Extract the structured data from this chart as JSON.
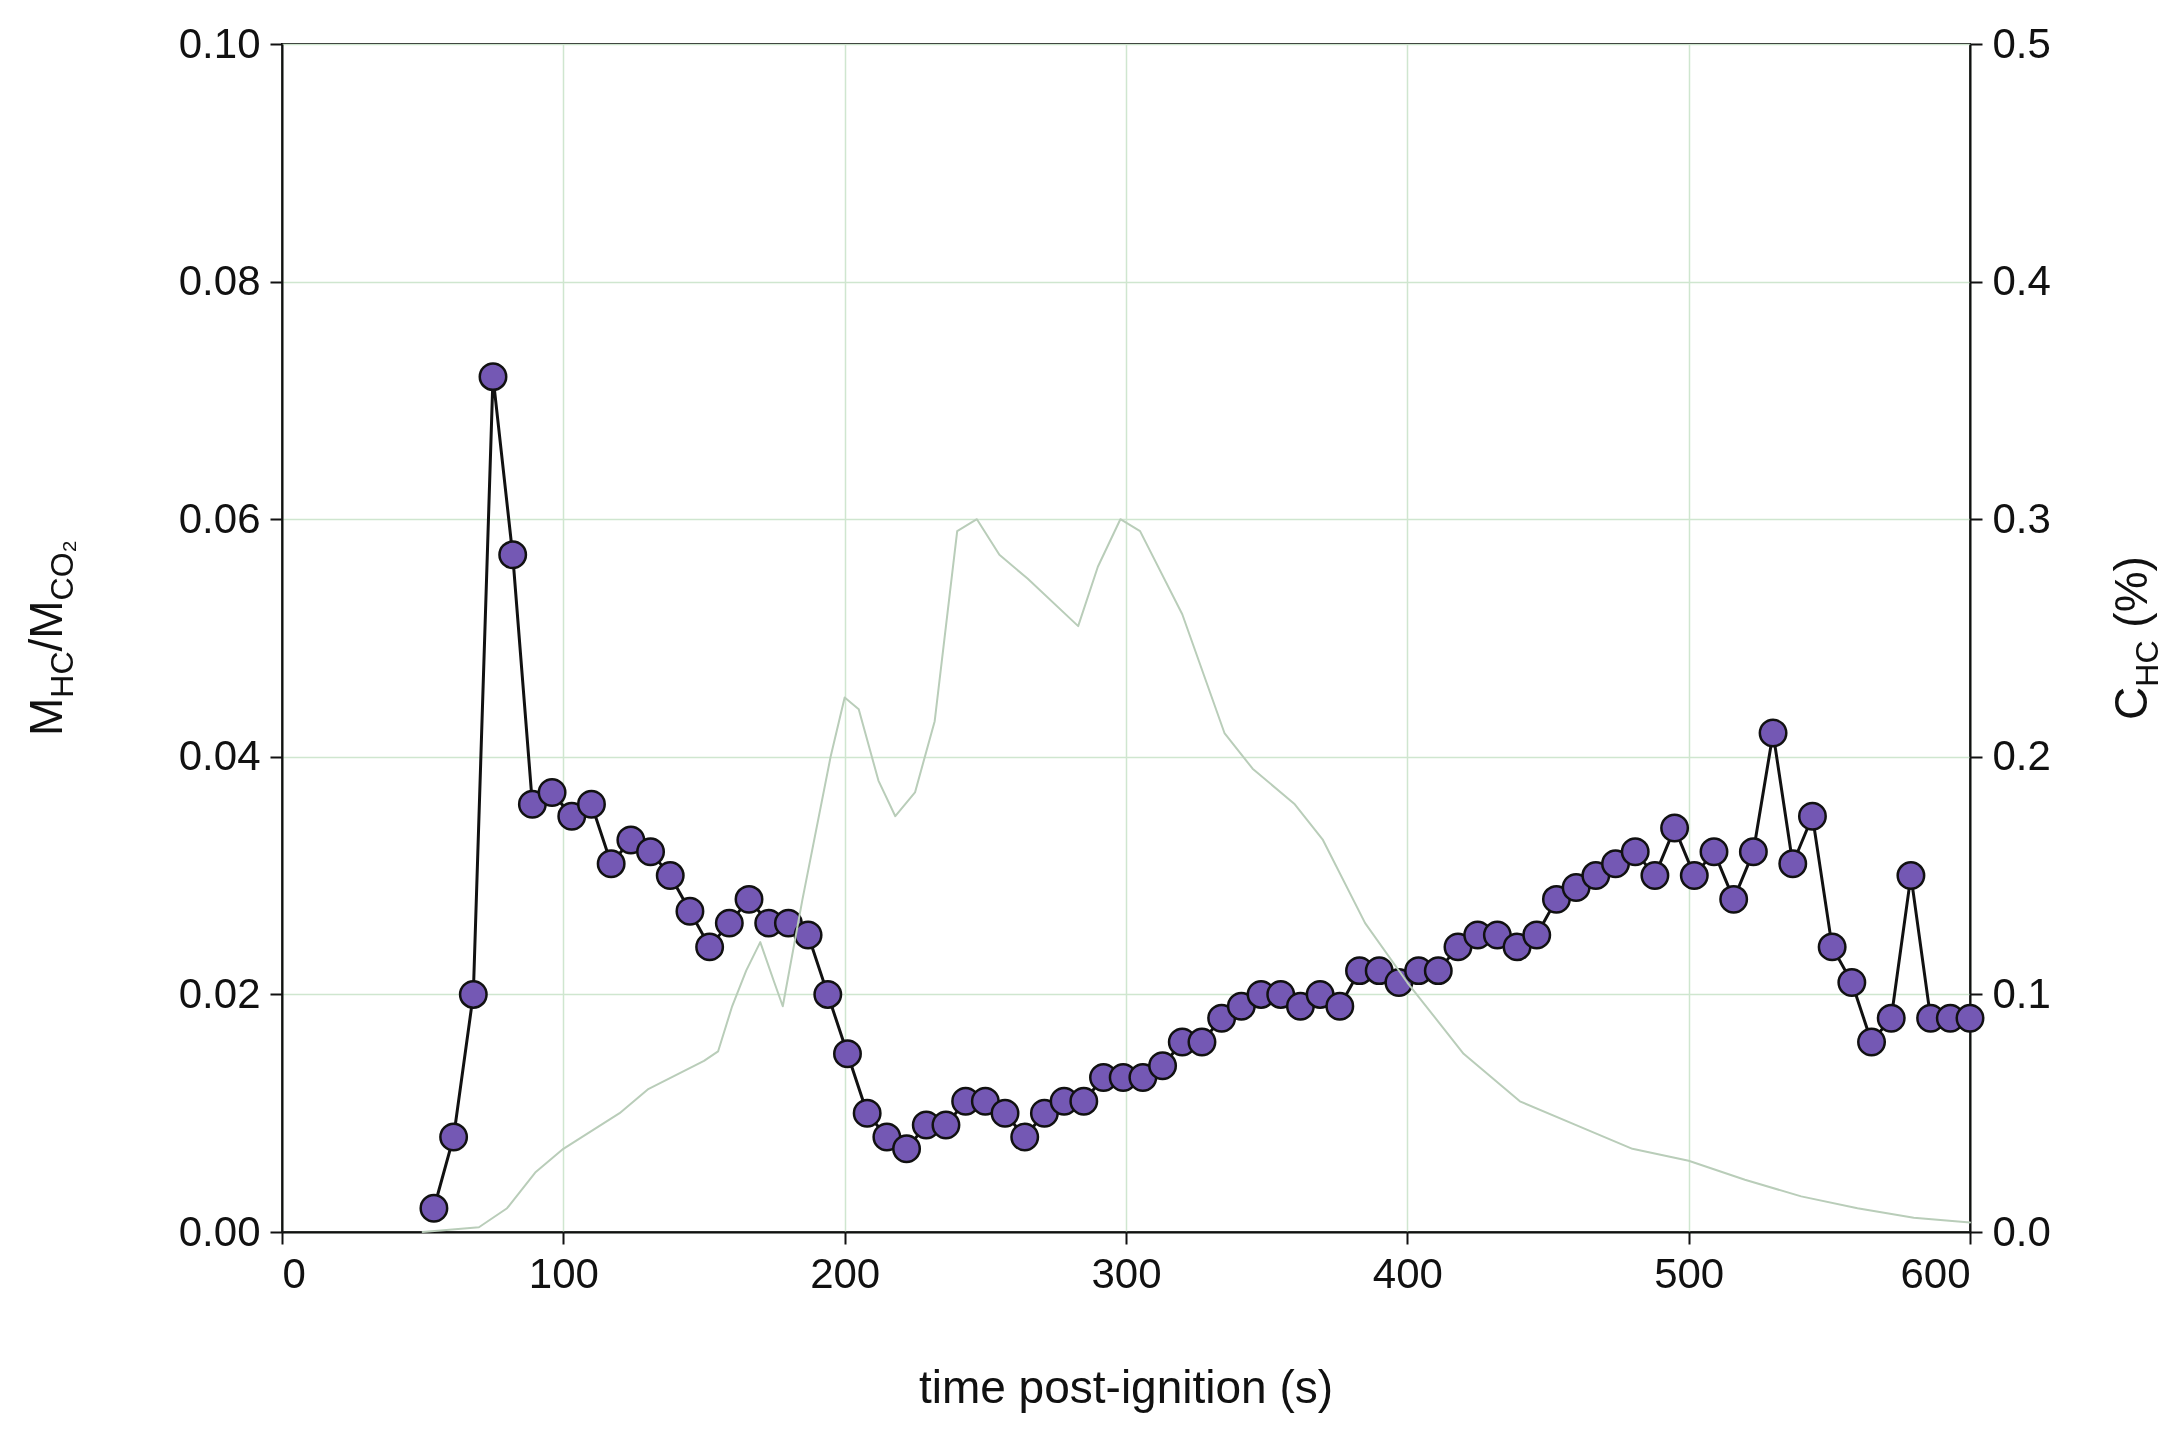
{
  "chart_data": {
    "type": "line",
    "xlabel": "time post-ignition (s)",
    "ylabel": "M$_{HC}$/M$_{CO₂}$",
    "y2label": "C$_{HC}$ (%)",
    "xlim": [
      0,
      600
    ],
    "xticks": [
      0,
      100,
      200,
      300,
      400,
      500,
      600
    ],
    "ylim": [
      0,
      0.1
    ],
    "yticks": [
      {
        "value": 0,
        "label": "0.00"
      },
      {
        "value": 0.02,
        "label": "0.02"
      },
      {
        "value": 0.04,
        "label": "0.04"
      },
      {
        "value": 0.06,
        "label": "0.06"
      },
      {
        "value": 0.08,
        "label": "0.08"
      },
      {
        "value": 0.1,
        "label": "0.10"
      }
    ],
    "y2lim": [
      0,
      0.5
    ],
    "y2ticks": [
      {
        "value": 0,
        "label": "0.0"
      },
      0.1,
      0.2,
      0.3,
      0.4,
      0.5
    ],
    "grid": true,
    "series": [
      {
        "axis": "y2",
        "color": "#b9cdb9",
        "marker": "none",
        "x": [
          50,
          70,
          80,
          90,
          100,
          120,
          130,
          140,
          150,
          155,
          160,
          165,
          170,
          175,
          178,
          185,
          195,
          200,
          205,
          212,
          218,
          225,
          232,
          240,
          247,
          255,
          265,
          283,
          290,
          298,
          305,
          320,
          335,
          345,
          360,
          370,
          385,
          400,
          420,
          440,
          460,
          480,
          500,
          520,
          540,
          560,
          580,
          600
        ],
        "values": [
          0,
          0.002,
          0.01,
          0.025,
          0.035,
          0.05,
          0.06,
          0.066,
          0.072,
          0.076,
          0.095,
          0.11,
          0.122,
          0.105,
          0.095,
          0.14,
          0.2,
          0.225,
          0.22,
          0.19,
          0.175,
          0.185,
          0.215,
          0.295,
          0.3,
          0.285,
          0.275,
          0.255,
          0.28,
          0.3,
          0.295,
          0.26,
          0.21,
          0.195,
          0.18,
          0.165,
          0.13,
          0.105,
          0.075,
          0.055,
          0.045,
          0.035,
          0.03,
          0.022,
          0.015,
          0.01,
          0.006,
          0.004
        ]
      },
      {
        "color": "#7458b4",
        "marker": "circle",
        "x": [
          54,
          61,
          68,
          75,
          82,
          89,
          96,
          103,
          110,
          117,
          124,
          131,
          138,
          145,
          152,
          159,
          166,
          173,
          180,
          187,
          194,
          201,
          208,
          215,
          222,
          229,
          236,
          243,
          250,
          257,
          264,
          271,
          278,
          285,
          292,
          299,
          306,
          313,
          320,
          327,
          334,
          341,
          348,
          355,
          362,
          369,
          376,
          383,
          390,
          397,
          404,
          411,
          418,
          425,
          432,
          439,
          446,
          453,
          460,
          467,
          474,
          481,
          488,
          495,
          502,
          509,
          516,
          523,
          530,
          537,
          544,
          551,
          558,
          565,
          572,
          579,
          586,
          593,
          600
        ],
        "values": [
          0.002,
          0.008,
          0.02,
          0.072,
          0.057,
          0.036,
          0.037,
          0.035,
          0.036,
          0.031,
          0.033,
          0.032,
          0.03,
          0.027,
          0.024,
          0.026,
          0.028,
          0.026,
          0.026,
          0.025,
          0.02,
          0.015,
          0.01,
          0.008,
          0.007,
          0.009,
          0.009,
          0.011,
          0.011,
          0.01,
          0.008,
          0.01,
          0.011,
          0.011,
          0.013,
          0.013,
          0.013,
          0.014,
          0.016,
          0.016,
          0.018,
          0.019,
          0.02,
          0.02,
          0.019,
          0.02,
          0.019,
          0.022,
          0.022,
          0.021,
          0.022,
          0.022,
          0.024,
          0.025,
          0.025,
          0.024,
          0.025,
          0.028,
          0.029,
          0.03,
          0.031,
          0.032,
          0.03,
          0.034,
          0.03,
          0.032,
          0.028,
          0.032,
          0.042,
          0.031,
          0.035,
          0.024,
          0.021,
          0.016,
          0.018,
          0.03,
          0.018,
          0.018,
          0.018
        ]
      }
    ]
  }
}
